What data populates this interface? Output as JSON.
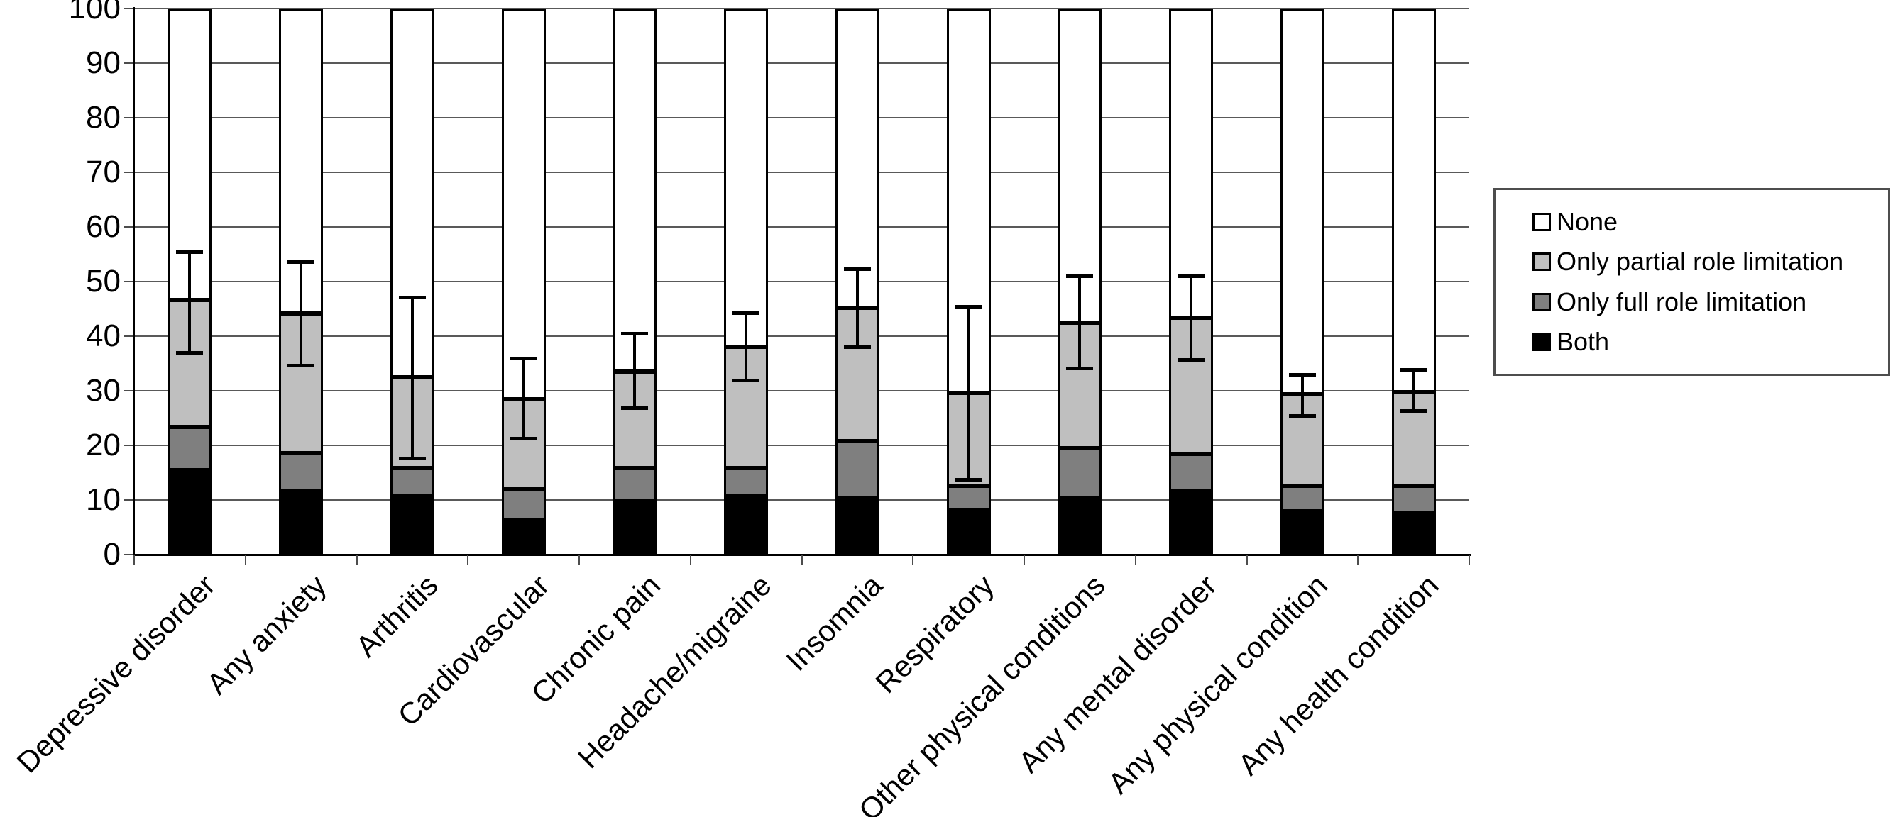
{
  "chart_data": {
    "type": "bar",
    "stacked": true,
    "title": "",
    "xlabel": "",
    "ylabel": "",
    "categories": [
      "Depressive disorder",
      "Any anxiety",
      "Arthritis",
      "Cardiovascular",
      "Chronic pain",
      "Headache/migraine",
      "Insomnia",
      "Respiratory",
      "Other physical conditions",
      "Any mental disorder",
      "Any physical condition",
      "Any health condition"
    ],
    "series": [
      {
        "name": "Both",
        "color": "#000000",
        "values": [
          15.4,
          11.6,
          10.6,
          6.4,
          9.8,
          10.7,
          10.4,
          8.1,
          10.2,
          11.6,
          7.9,
          7.7
        ]
      },
      {
        "name": "Only full role limitation",
        "color": "#7f7f7f",
        "values": [
          8.0,
          7.0,
          5.2,
          5.5,
          6.0,
          5.2,
          10.4,
          4.5,
          9.3,
          6.8,
          4.7,
          4.9
        ]
      },
      {
        "name": "Only partial role limitation",
        "color": "#bfbfbf",
        "values": [
          23.2,
          25.6,
          16.7,
          16.5,
          17.7,
          22.1,
          24.4,
          17.0,
          23.0,
          25.0,
          16.8,
          17.2
        ]
      },
      {
        "name": "None",
        "color": "#ffffff",
        "values": [
          53.4,
          55.8,
          67.5,
          71.6,
          66.5,
          62.0,
          54.8,
          70.4,
          57.5,
          56.6,
          70.6,
          70.2
        ]
      }
    ],
    "error_bars": {
      "attached_to": "top of 'Only partial role limitation' stack (any role limitation total)",
      "low": [
        37.0,
        34.7,
        17.7,
        21.3,
        26.9,
        31.9,
        38.0,
        13.8,
        34.2,
        35.7,
        25.5,
        26.4
      ],
      "high": [
        55.5,
        53.7,
        47.2,
        36.0,
        40.5,
        44.3,
        52.4,
        45.5,
        51.1,
        51.1,
        33.0,
        33.9
      ]
    },
    "y_axis": {
      "min": 0,
      "max": 100,
      "tick_step": 10
    },
    "x_axis": {
      "label_rotation_deg": 45
    },
    "grid": true,
    "legend": {
      "position": "right",
      "entries": [
        "None",
        "Only partial role limitation",
        "Only full role limitation",
        "Both"
      ]
    }
  },
  "colors": {
    "none": "#ffffff",
    "only_partial_role_limitation": "#bfbfbf",
    "only_full_role_limitation": "#7f7f7f",
    "both": "#000000",
    "gridline": "#595959",
    "axis": "#000000",
    "background": "#ffffff"
  }
}
